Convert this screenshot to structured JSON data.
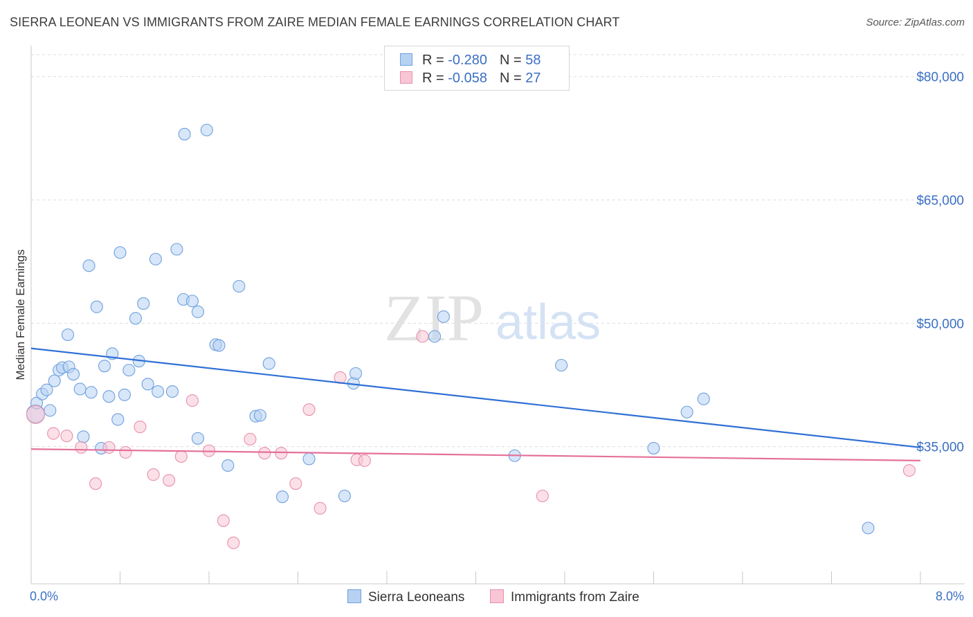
{
  "title": "SIERRA LEONEAN VS IMMIGRANTS FROM ZAIRE MEDIAN FEMALE EARNINGS CORRELATION CHART",
  "source": "Source: ZipAtlas.com",
  "watermark": {
    "zip": "ZIP",
    "atlas": "atlas"
  },
  "legend_top": {
    "rows": [
      {
        "r_label": "R = ",
        "r_value": "-0.280",
        "n_label": "N = ",
        "n_value": "58"
      },
      {
        "r_label": "R = ",
        "r_value": "-0.058",
        "n_label": "N = ",
        "n_value": "27"
      }
    ]
  },
  "legend_bottom": {
    "items": [
      {
        "label": "Sierra Leoneans"
      },
      {
        "label": "Immigrants from Zaire"
      }
    ]
  },
  "x_tick_labels": {
    "min": "0.0%",
    "max": "8.0%"
  },
  "colors": {
    "blue_fill": "#b7d1f2",
    "blue_stroke": "#6fa0de",
    "blue_line": "#2f6fd6",
    "pink_fill": "#f8c6d5",
    "pink_stroke": "#e890ac",
    "pink_line": "#e4709a",
    "tick_text": "#3a6fc4",
    "grid": "#dcdcdc"
  },
  "chart_data": {
    "type": "scatter",
    "ylabel": "Median Female Earnings",
    "xlim": [
      0,
      8
    ],
    "ylim": [
      20000,
      82500
    ],
    "y_ticks": [
      {
        "value": 80000,
        "label": "$80,000"
      },
      {
        "value": 65000,
        "label": "$65,000"
      },
      {
        "value": 50000,
        "label": "$50,000"
      },
      {
        "value": 35000,
        "label": "$35,000"
      }
    ],
    "grid": "horizontal dashed",
    "legend_position": "top-center",
    "series": [
      {
        "name": "Sierra Leoneans",
        "color": "#b7d1f2",
        "r": -0.28,
        "n": 58,
        "trend": {
          "x": [
            0,
            8
          ],
          "y": [
            46950,
            34900
          ]
        },
        "points": [
          [
            0.04,
            39000
          ],
          [
            0.05,
            40300
          ],
          [
            0.1,
            41400
          ],
          [
            0.14,
            41900
          ],
          [
            0.17,
            39400
          ],
          [
            0.21,
            43000
          ],
          [
            0.25,
            44300
          ],
          [
            0.28,
            44600
          ],
          [
            0.34,
            44700
          ],
          [
            0.38,
            43800
          ],
          [
            0.33,
            48600
          ],
          [
            0.44,
            42000
          ],
          [
            0.47,
            36200
          ],
          [
            0.52,
            57000
          ],
          [
            0.54,
            41600
          ],
          [
            0.59,
            52000
          ],
          [
            0.63,
            34800
          ],
          [
            0.66,
            44800
          ],
          [
            0.7,
            41100
          ],
          [
            0.73,
            46300
          ],
          [
            0.78,
            38300
          ],
          [
            0.8,
            58600
          ],
          [
            0.84,
            41300
          ],
          [
            0.88,
            44300
          ],
          [
            0.94,
            50600
          ],
          [
            0.97,
            45400
          ],
          [
            1.01,
            52400
          ],
          [
            1.05,
            42600
          ],
          [
            1.12,
            57800
          ],
          [
            1.14,
            41700
          ],
          [
            1.27,
            41700
          ],
          [
            1.31,
            59000
          ],
          [
            1.37,
            52900
          ],
          [
            1.38,
            73000
          ],
          [
            1.45,
            52700
          ],
          [
            1.5,
            51400
          ],
          [
            1.5,
            36000
          ],
          [
            1.58,
            73500
          ],
          [
            1.66,
            47400
          ],
          [
            1.69,
            47300
          ],
          [
            1.77,
            32700
          ],
          [
            1.87,
            54500
          ],
          [
            2.02,
            38700
          ],
          [
            2.06,
            38800
          ],
          [
            2.14,
            45100
          ],
          [
            2.26,
            28900
          ],
          [
            2.5,
            33500
          ],
          [
            2.82,
            29000
          ],
          [
            2.9,
            42700
          ],
          [
            2.92,
            43900
          ],
          [
            3.63,
            48400
          ],
          [
            3.71,
            50800
          ],
          [
            4.35,
            33900
          ],
          [
            4.77,
            44900
          ],
          [
            5.6,
            34800
          ],
          [
            5.9,
            39200
          ],
          [
            6.05,
            40800
          ],
          [
            7.53,
            25100
          ]
        ]
      },
      {
        "name": "Immigrants from Zaire",
        "color": "#f8c6d5",
        "r": -0.058,
        "n": 27,
        "trend": {
          "x": [
            0,
            8
          ],
          "y": [
            34700,
            33300
          ]
        },
        "points": [
          [
            0.04,
            38900
          ],
          [
            0.2,
            36600
          ],
          [
            0.32,
            36300
          ],
          [
            0.45,
            34900
          ],
          [
            0.58,
            30500
          ],
          [
            0.7,
            34900
          ],
          [
            0.85,
            34300
          ],
          [
            0.98,
            37400
          ],
          [
            1.1,
            31600
          ],
          [
            1.24,
            30900
          ],
          [
            1.35,
            33800
          ],
          [
            1.45,
            40600
          ],
          [
            1.6,
            34500
          ],
          [
            1.73,
            26000
          ],
          [
            1.82,
            23300
          ],
          [
            1.97,
            35900
          ],
          [
            2.1,
            34200
          ],
          [
            2.25,
            34200
          ],
          [
            2.38,
            30500
          ],
          [
            2.5,
            39500
          ],
          [
            2.6,
            27500
          ],
          [
            2.78,
            43400
          ],
          [
            2.93,
            33400
          ],
          [
            3.0,
            33300
          ],
          [
            3.52,
            48400
          ],
          [
            4.6,
            29000
          ],
          [
            7.9,
            32100
          ]
        ]
      }
    ]
  }
}
